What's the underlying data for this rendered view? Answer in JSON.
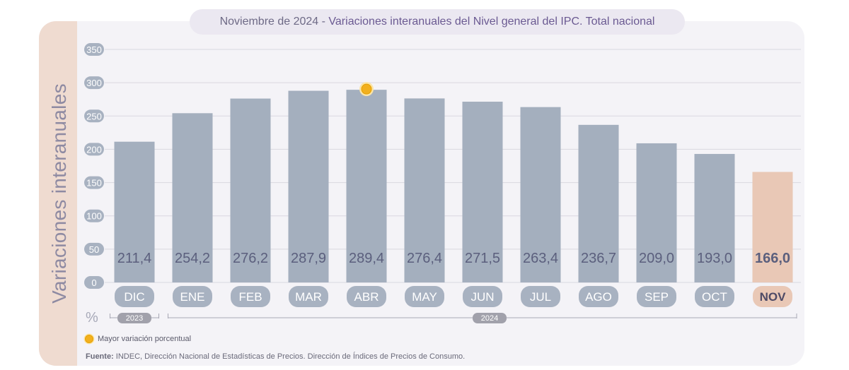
{
  "title": {
    "date": "Noviembre de 2024",
    "separator": " - ",
    "main": "Variaciones interanuales del Nivel general del IPC. Total nacional"
  },
  "legend": {
    "highlight_label": "Mayor variación porcentual"
  },
  "source": {
    "label": "Fuente:",
    "text": " INDEC, Dirección Nacional de Estadísticas de Precios. Dirección de Índices de Precios de Consumo."
  },
  "colors": {
    "bar": "#a4afbe",
    "bar_highlight": "#e9c8b6",
    "value_text": "#5b5f7d",
    "tick_badge": "#a8b2c1",
    "highlight_marker": "#f2b01e"
  },
  "chart_data": {
    "type": "bar",
    "ylabel": "Variaciones interanuales",
    "unit_label": "%",
    "ylim": [
      0,
      350
    ],
    "yticks": [
      0,
      50,
      100,
      150,
      200,
      250,
      300,
      350
    ],
    "grid": true,
    "categories": [
      "DIC",
      "ENE",
      "FEB",
      "MAR",
      "ABR",
      "MAY",
      "JUN",
      "JUL",
      "AGO",
      "SEP",
      "OCT",
      "NOV"
    ],
    "values": [
      211.4,
      254.2,
      276.2,
      287.9,
      289.4,
      276.4,
      271.5,
      263.4,
      236.7,
      209.0,
      193.0,
      166.0
    ],
    "value_labels": [
      "211,4",
      "254,2",
      "276,2",
      "287,9",
      "289,4",
      "276,4",
      "271,5",
      "263,4",
      "236,7",
      "209,0",
      "193,0",
      "166,0"
    ],
    "highlight_max_index": 4,
    "current_index": 11,
    "year_groups": [
      {
        "label": "2023",
        "start": 0,
        "end": 0
      },
      {
        "label": "2024",
        "start": 1,
        "end": 11
      }
    ]
  }
}
